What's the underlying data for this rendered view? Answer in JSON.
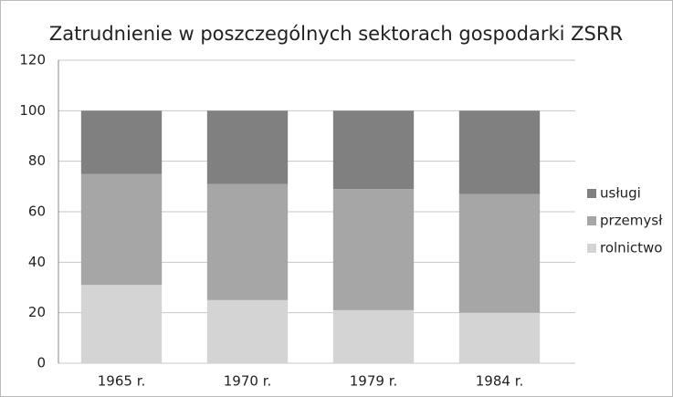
{
  "chart_data": {
    "type": "stacked_bar",
    "title": "Zatrudnienie w poszczególnych sektorach gospodarki ZSRR",
    "categories": [
      "1965 r.",
      "1970 r.",
      "1979 r.",
      "1984 r."
    ],
    "series": [
      {
        "name": "rolnictwo",
        "color": "#d4d4d4",
        "values": [
          31,
          25,
          21,
          20
        ]
      },
      {
        "name": "przemysł",
        "color": "#a6a6a6",
        "values": [
          44,
          46,
          48,
          47
        ]
      },
      {
        "name": "usługi",
        "color": "#808080",
        "values": [
          25,
          29,
          31,
          33
        ]
      }
    ],
    "ylim": [
      0,
      120
    ],
    "yticks": [
      0,
      20,
      40,
      60,
      80,
      100,
      120
    ],
    "grid": true,
    "legend": "right"
  }
}
